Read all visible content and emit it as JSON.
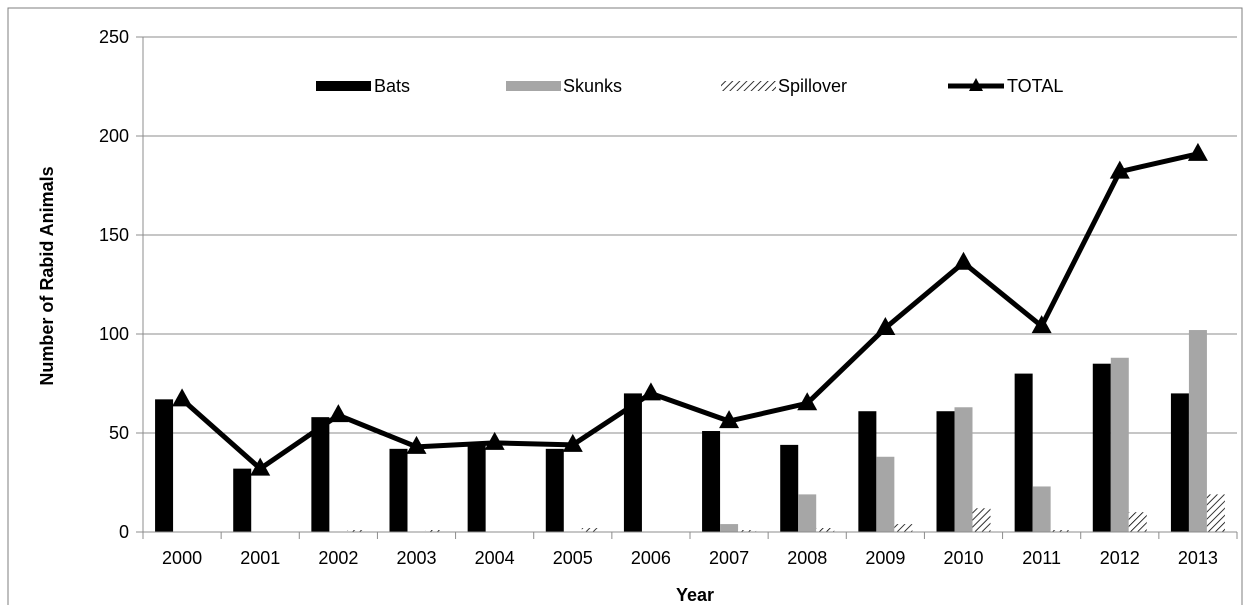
{
  "chart_data": {
    "type": "bar",
    "xlabel": "Year",
    "ylabel": "Number of Rabid Animals",
    "ylim": [
      0,
      250
    ],
    "yticks": [
      0,
      50,
      100,
      150,
      200,
      250
    ],
    "grid": true,
    "legend_position": "top",
    "categories": [
      "2000",
      "2001",
      "2002",
      "2003",
      "2004",
      "2005",
      "2006",
      "2007",
      "2008",
      "2009",
      "2010",
      "2011",
      "2012",
      "2013"
    ],
    "series": [
      {
        "name": "Bats",
        "kind": "bar",
        "color": "#000000",
        "values": [
          67,
          32,
          58,
          42,
          45,
          42,
          70,
          51,
          44,
          61,
          61,
          80,
          85,
          70
        ]
      },
      {
        "name": "Skunks",
        "kind": "bar",
        "color": "#a6a6a6",
        "values": [
          0,
          0,
          0,
          0,
          0,
          0,
          0,
          4,
          19,
          38,
          63,
          23,
          88,
          102
        ]
      },
      {
        "name": "Spillover",
        "kind": "bar",
        "color": "hatched",
        "values": [
          0,
          0,
          1,
          1,
          0,
          2,
          0,
          1,
          2,
          4,
          12,
          1,
          10,
          19
        ]
      },
      {
        "name": "TOTAL",
        "kind": "line",
        "color": "#000000",
        "marker": "triangle",
        "values": [
          67,
          32,
          59,
          43,
          45,
          44,
          70,
          56,
          65,
          103,
          136,
          104,
          182,
          191
        ]
      }
    ]
  }
}
